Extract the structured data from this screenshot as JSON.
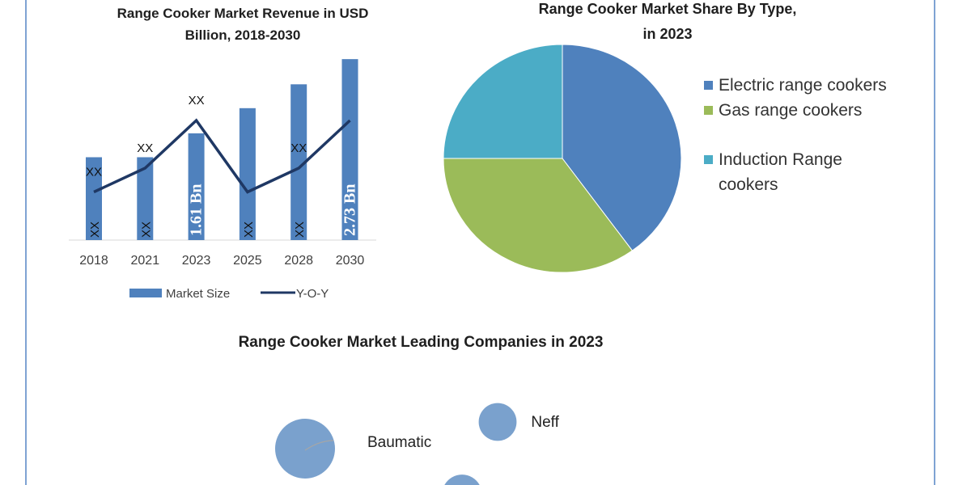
{
  "chart_data": [
    {
      "type": "bar",
      "title": "Range Cooker Market Revenue in USD Billion, 2018-2030",
      "categories": [
        "2018",
        "2021",
        "2023",
        "2025",
        "2028",
        "2030"
      ],
      "series": [
        {
          "name": "Market Size",
          "type": "bar",
          "values": [
            1.25,
            1.25,
            1.61,
            1.99,
            2.35,
            2.73
          ],
          "labels": [
            "XX",
            "XX",
            "1.61 Bn",
            "XX",
            "XX",
            "2.73 Bn"
          ],
          "color": "#4f81bd"
        },
        {
          "name": "Y-O-Y",
          "type": "line",
          "values": [
            1,
            2,
            4,
            1,
            2,
            4
          ],
          "labels": [
            "XX",
            "XX",
            "XX",
            "",
            "XX",
            ""
          ],
          "color": "#1f3864"
        }
      ],
      "legend": "bottom",
      "grid": false
    },
    {
      "type": "pie",
      "title": "Range Cooker Market Share By Type, in 2023",
      "categories": [
        "Electric range cookers",
        "Gas range cookers",
        "Induction Range cookers"
      ],
      "values": [
        40,
        35,
        25
      ],
      "colors": [
        "#4f81bd",
        "#9bbb59",
        "#4bacc6"
      ],
      "legend": "right"
    },
    {
      "type": "bubble",
      "title": "Range Cooker Market Leading Companies in 2023",
      "points": [
        {
          "label": "Baumatic",
          "size": 1.0
        },
        {
          "label": "Neff",
          "size": 0.4
        },
        {
          "label": "",
          "size": 0.45
        }
      ],
      "color": "#7aa1cd"
    }
  ]
}
